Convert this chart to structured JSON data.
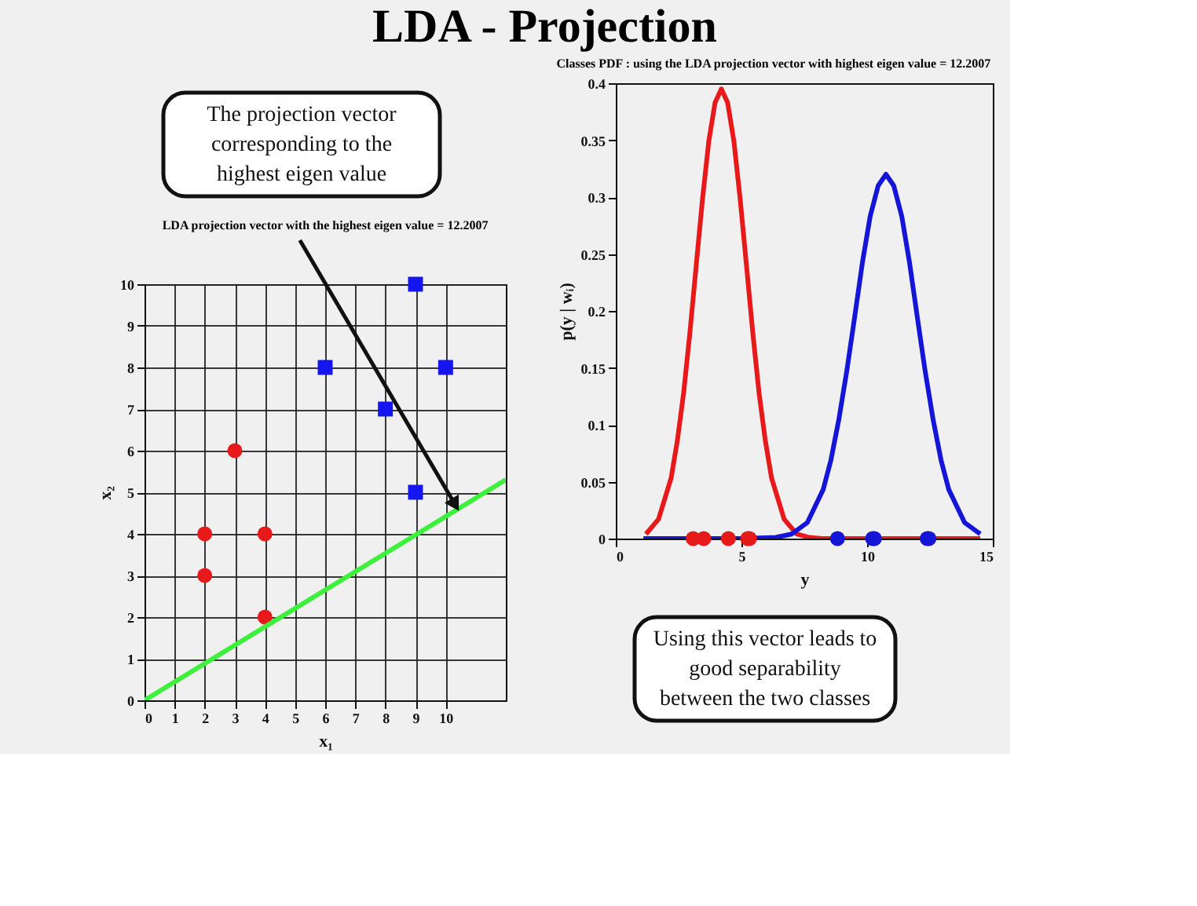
{
  "chart_data": [
    {
      "type": "other",
      "title": "LDA - Projection"
    },
    {
      "type": "scatter",
      "title": "LDA projection vector with the highest eigen value = 12.2007",
      "xlabel": "x₁",
      "ylabel": "x₂",
      "xlim": [
        0,
        12
      ],
      "xticks": [
        0,
        1,
        2,
        3,
        4,
        5,
        6,
        7,
        8,
        9,
        10
      ],
      "ylim": [
        0,
        10
      ],
      "yticks": [
        0,
        1,
        2,
        3,
        4,
        5,
        6,
        7,
        8,
        9,
        10
      ],
      "grid": true,
      "legend": false,
      "series": [
        {
          "color": "#e8191b",
          "marker": "circle",
          "x": [
            2,
            2,
            3,
            4,
            4
          ],
          "values": [
            4,
            3,
            6,
            4,
            2
          ]
        },
        {
          "color": "#1515f0",
          "marker": "square",
          "x": [
            6,
            9,
            8,
            10,
            9
          ],
          "values": [
            8,
            10,
            7,
            8,
            5
          ]
        },
        {
          "type": "line",
          "color": "#3cf03c",
          "marker": "none",
          "x": [
            0,
            12
          ],
          "values": [
            0,
            5.3
          ]
        }
      ],
      "annotations": [
        "The projection vector\ncorresponding to the\nhighest eigen value"
      ]
    },
    {
      "type": "line",
      "title": "Classes PDF : using the LDA projection vector with highest eigen value = 12.2007",
      "xlabel": "y",
      "ylabel": "p(y | wᵢ)",
      "xlim": [
        0,
        15
      ],
      "xticks": [
        0,
        5,
        10,
        15
      ],
      "ylim": [
        0,
        0.4
      ],
      "yticks": [
        0,
        0.05,
        0.1,
        0.15,
        0.2,
        0.25,
        0.3,
        0.35,
        0.4
      ],
      "grid": false,
      "legend": false,
      "series": [
        {
          "color": "#e8191b",
          "marker": "none",
          "x": [
            1.2,
            1.7,
            2.2,
            2.45,
            2.7,
            2.95,
            3.2,
            3.45,
            3.7,
            3.95,
            4.2,
            4.45,
            4.7,
            4.95,
            5.2,
            5.45,
            5.7,
            5.95,
            6.2,
            6.7,
            7.2,
            7.7,
            8.2,
            10,
            12,
            14.5
          ],
          "values": [
            0.004,
            0.017,
            0.053,
            0.086,
            0.128,
            0.181,
            0.24,
            0.298,
            0.349,
            0.383,
            0.395,
            0.383,
            0.349,
            0.298,
            0.24,
            0.181,
            0.128,
            0.086,
            0.053,
            0.017,
            0.004,
            0.001,
            0,
            0,
            0,
            0
          ]
        },
        {
          "color": "#1515d8",
          "marker": "none",
          "x": [
            1.1,
            5,
            6.37,
            7.0,
            7.62,
            8.25,
            8.56,
            8.87,
            9.19,
            9.5,
            9.81,
            10.12,
            10.44,
            10.75,
            11.06,
            11.38,
            11.69,
            12.0,
            12.31,
            12.63,
            12.94,
            13.25,
            13.88,
            14.5
          ],
          "values": [
            0,
            0,
            0.001,
            0.004,
            0.014,
            0.043,
            0.069,
            0.104,
            0.147,
            0.194,
            0.242,
            0.283,
            0.31,
            0.32,
            0.31,
            0.283,
            0.242,
            0.194,
            0.147,
            0.104,
            0.069,
            0.043,
            0.014,
            0.004
          ]
        },
        {
          "type": "scatter",
          "color": "#e8191b",
          "marker": "circle",
          "x": [
            3.08,
            3.5,
            4.48,
            5.25,
            5.32
          ],
          "values": [
            0,
            0,
            0,
            0,
            0
          ]
        },
        {
          "type": "scatter",
          "color": "#1515d8",
          "marker": "circle",
          "x": [
            8.82,
            10.22,
            10.29,
            12.39,
            12.46
          ],
          "values": [
            0,
            0,
            0,
            0,
            0
          ]
        }
      ],
      "annotations": [
        "Using this vector leads to\ngood separability\nbetween the two classes"
      ]
    }
  ]
}
